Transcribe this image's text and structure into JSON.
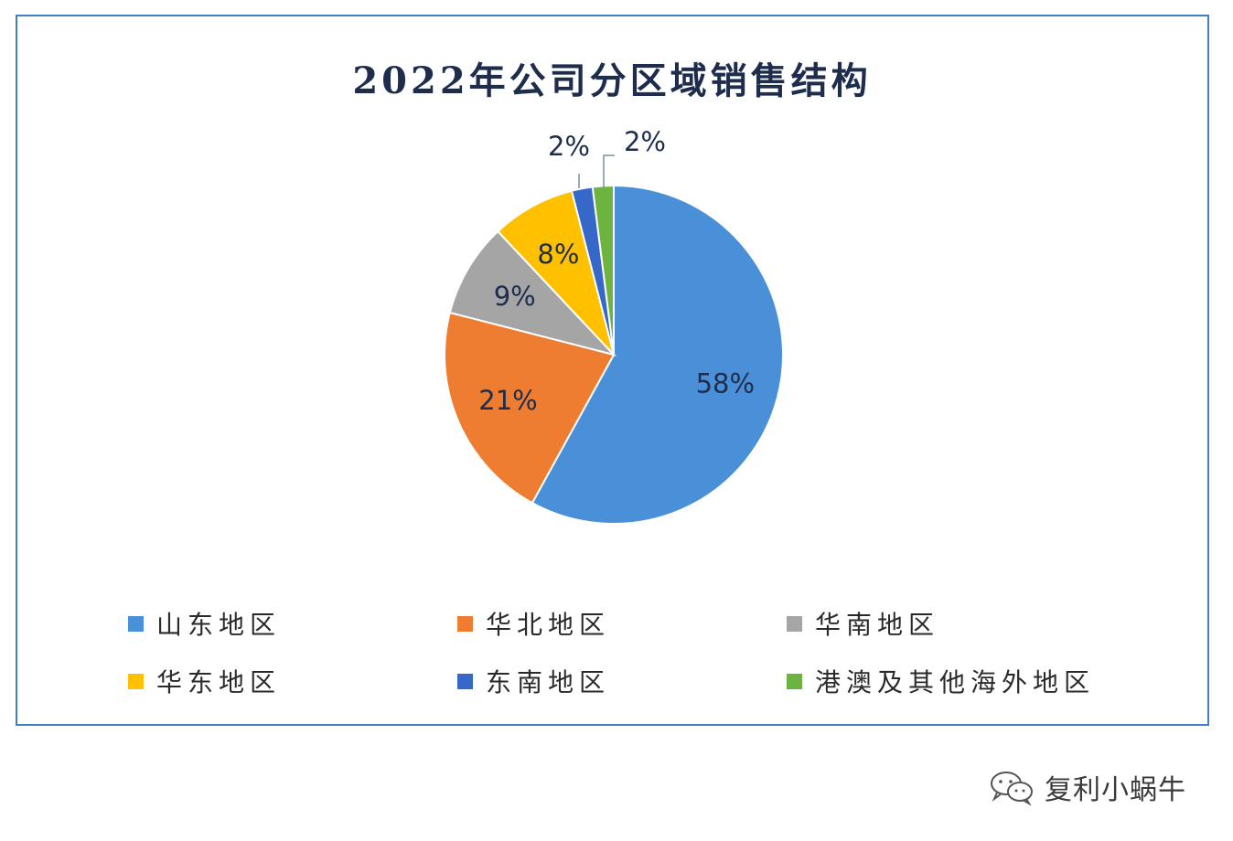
{
  "chart_data": {
    "type": "pie",
    "title": "2022年公司分区域销售结构",
    "categories": [
      "山东地区",
      "华北地区",
      "华南地区",
      "华东地区",
      "东南地区",
      "港澳及其他海外地区"
    ],
    "values": [
      58,
      21,
      9,
      8,
      2,
      2
    ],
    "data_labels": [
      "58%",
      "21%",
      "9%",
      "8%",
      "2%",
      "2%"
    ],
    "colors": [
      "#4a90d9",
      "#ee7d31",
      "#a5a5a5",
      "#ffc000",
      "#3568c9",
      "#6cb33f"
    ],
    "legend_position": "bottom"
  },
  "watermark": {
    "icon": "wechat-icon",
    "text": "复利小蜗牛"
  }
}
